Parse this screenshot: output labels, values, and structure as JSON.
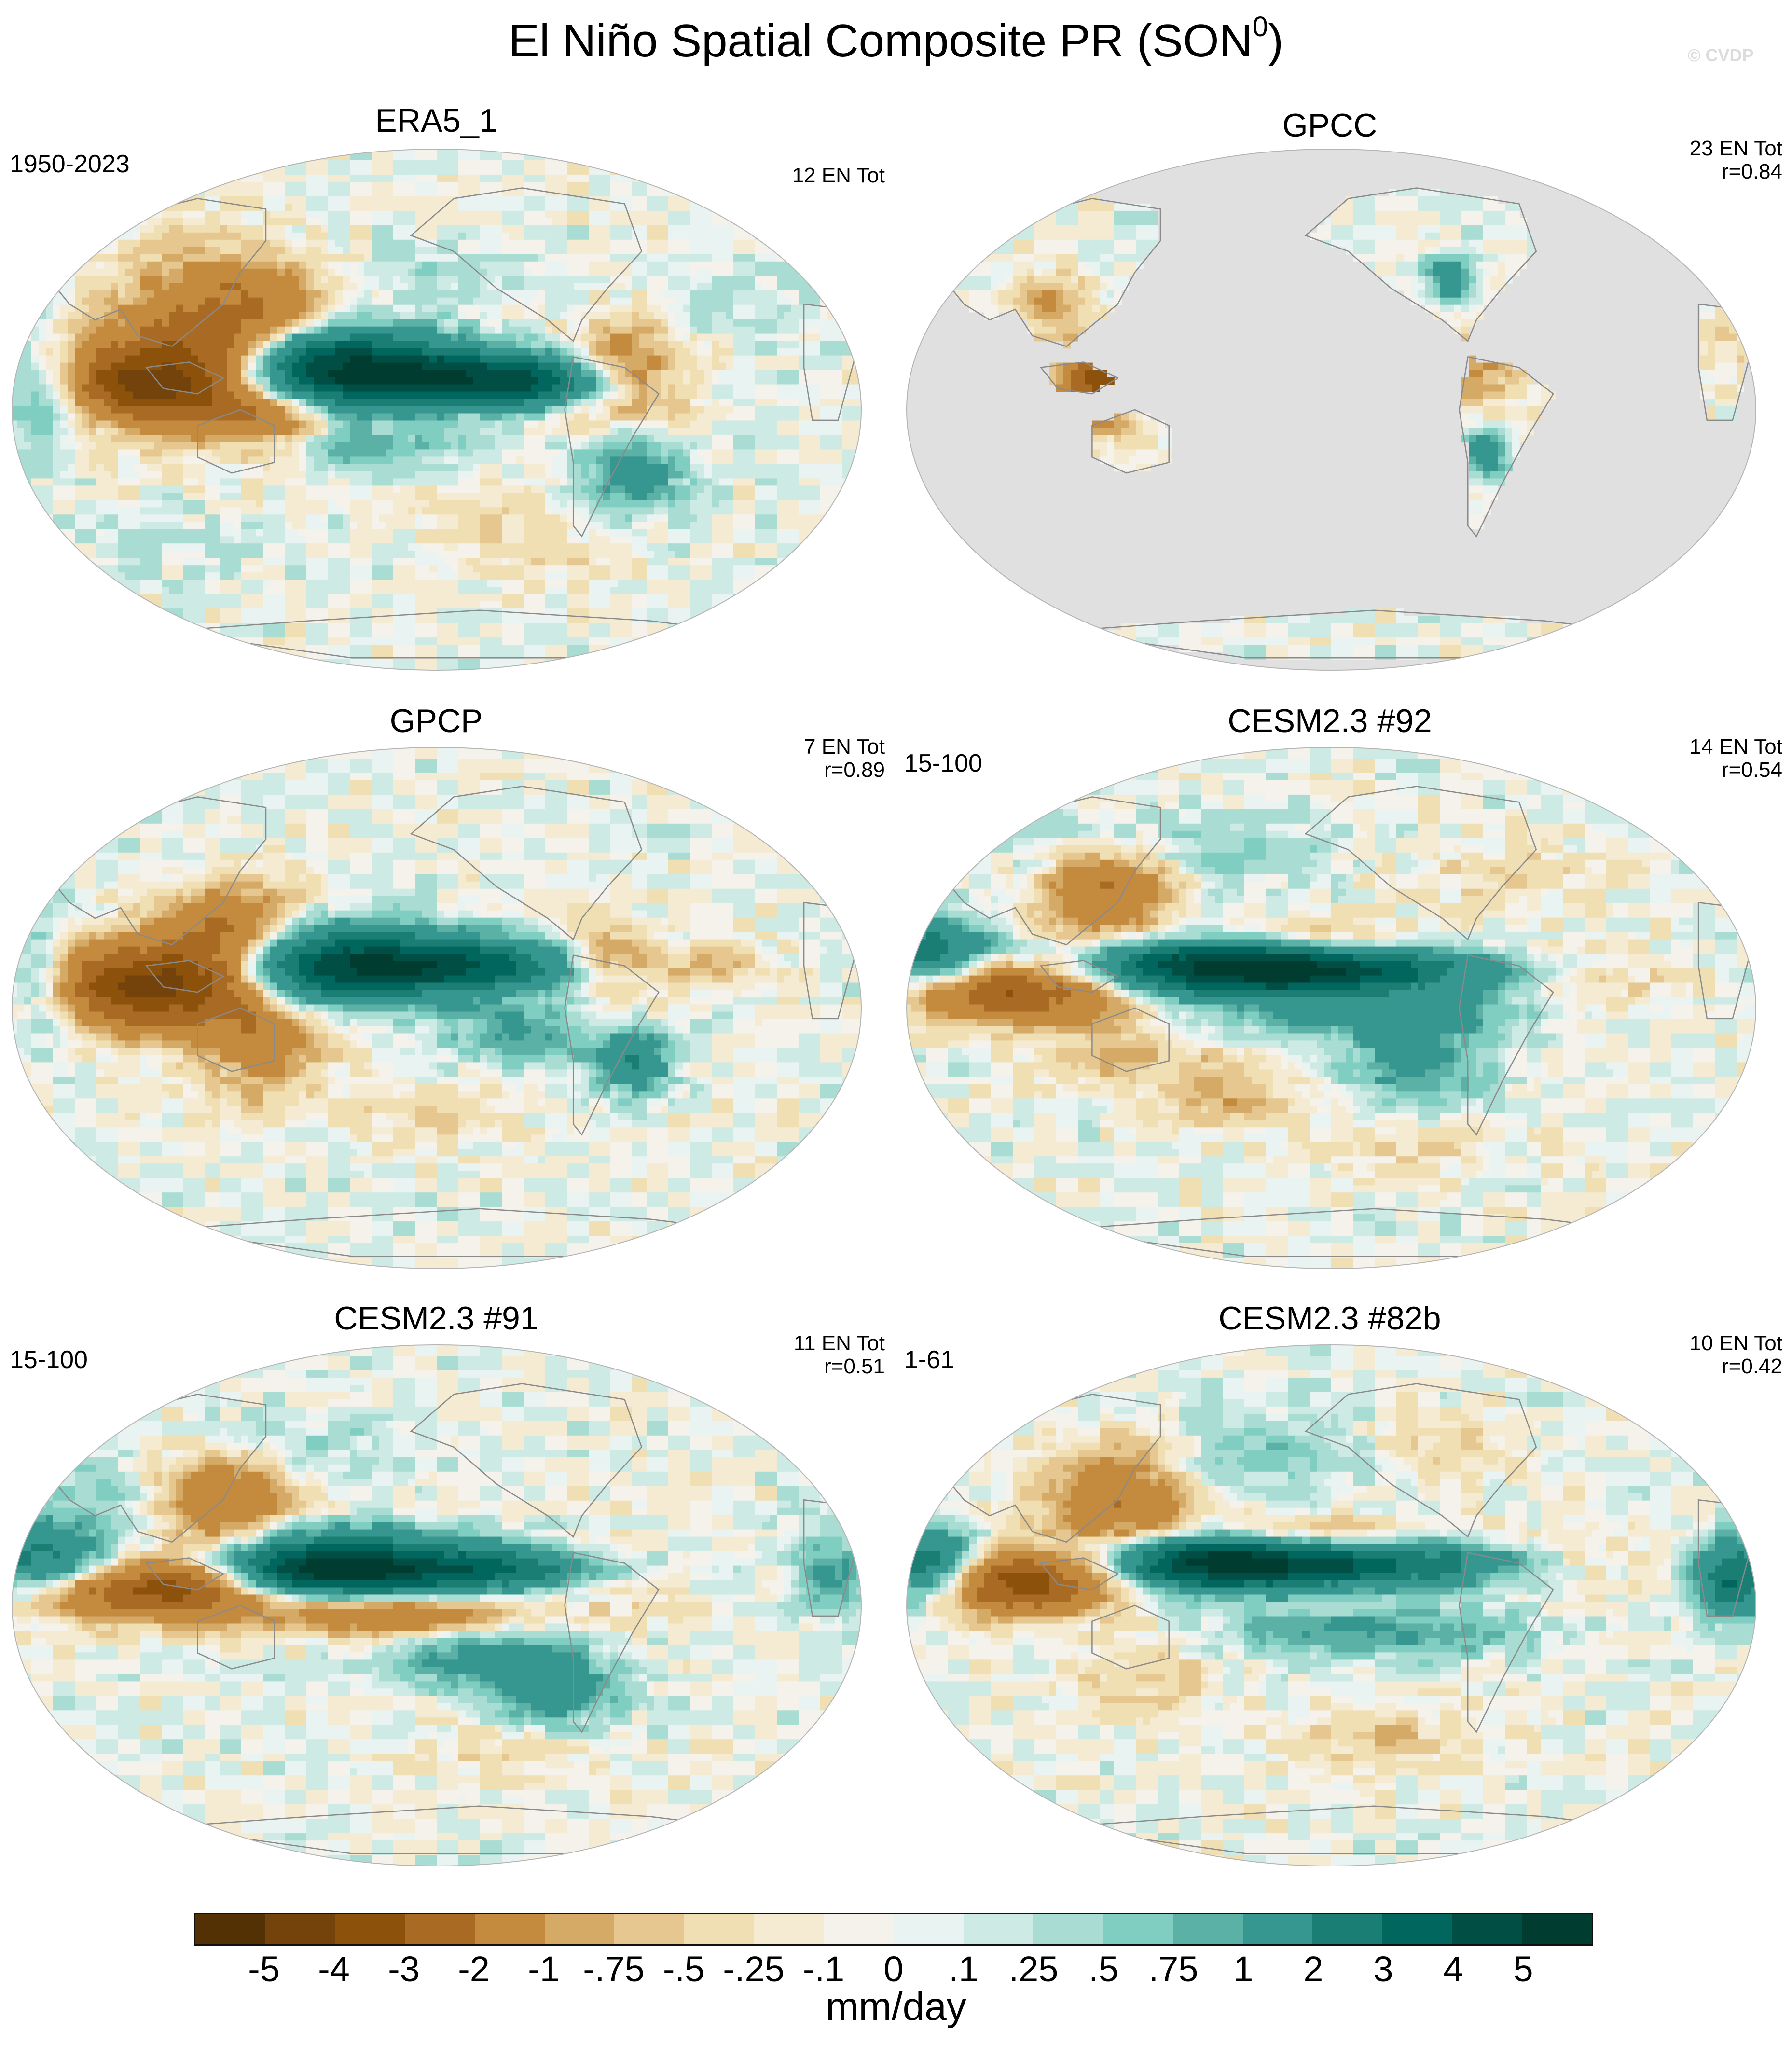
{
  "title": "El Niño Spatial Composite PR (SON",
  "title_superscript": "0",
  "title_close": ")",
  "watermark": "© CVDP",
  "panels": [
    {
      "title": "ERA5_1",
      "left_label": "1950-2023",
      "right_line1": "12 EN Tot",
      "right_line2": "",
      "variant": "obs1",
      "land_only": false
    },
    {
      "title": "GPCC",
      "left_label": "",
      "right_line1": "23 EN Tot",
      "right_line2": "r=0.84",
      "variant": "gpcc",
      "land_only": true
    },
    {
      "title": "GPCP",
      "left_label": "",
      "right_line1": "7 EN Tot",
      "right_line2": "r=0.89",
      "variant": "obs2",
      "land_only": false
    },
    {
      "title": "CESM2.3 #92",
      "left_label": "15-100",
      "right_line1": "14 EN Tot",
      "right_line2": "r=0.54",
      "variant": "m92",
      "land_only": false
    },
    {
      "title": "CESM2.3 #91",
      "left_label": "15-100",
      "right_line1": "11 EN Tot",
      "right_line2": "r=0.51",
      "variant": "m91",
      "land_only": false
    },
    {
      "title": "CESM2.3 #82b",
      "left_label": "1-61",
      "right_line1": "10 EN Tot",
      "right_line2": "r=0.42",
      "variant": "m82",
      "land_only": false
    }
  ],
  "colorbar": {
    "units": "mm/day",
    "tick_labels": [
      "-5",
      "-4",
      "-3",
      "-2",
      "-1",
      "-.75",
      "-.5",
      "-.25",
      "-.1",
      "0",
      ".1",
      ".25",
      ".5",
      ".75",
      "1",
      "2",
      "3",
      "4",
      "5"
    ],
    "colors": [
      "#543005",
      "#74420b",
      "#8c510a",
      "#a96b23",
      "#c48a3d",
      "#d5aa66",
      "#e5c78f",
      "#f0dfb3",
      "#f5ebd3",
      "#f5f2ec",
      "#e9f3f1",
      "#cdeae5",
      "#a9ddd4",
      "#80cdc1",
      "#5bb1a5",
      "#35978f",
      "#1b7e75",
      "#01665e",
      "#014e44",
      "#003c30"
    ]
  },
  "colors": {
    "missing_data": "#e0e0e0",
    "background": "#ffffff",
    "coastline": "#8a8a8a"
  }
}
